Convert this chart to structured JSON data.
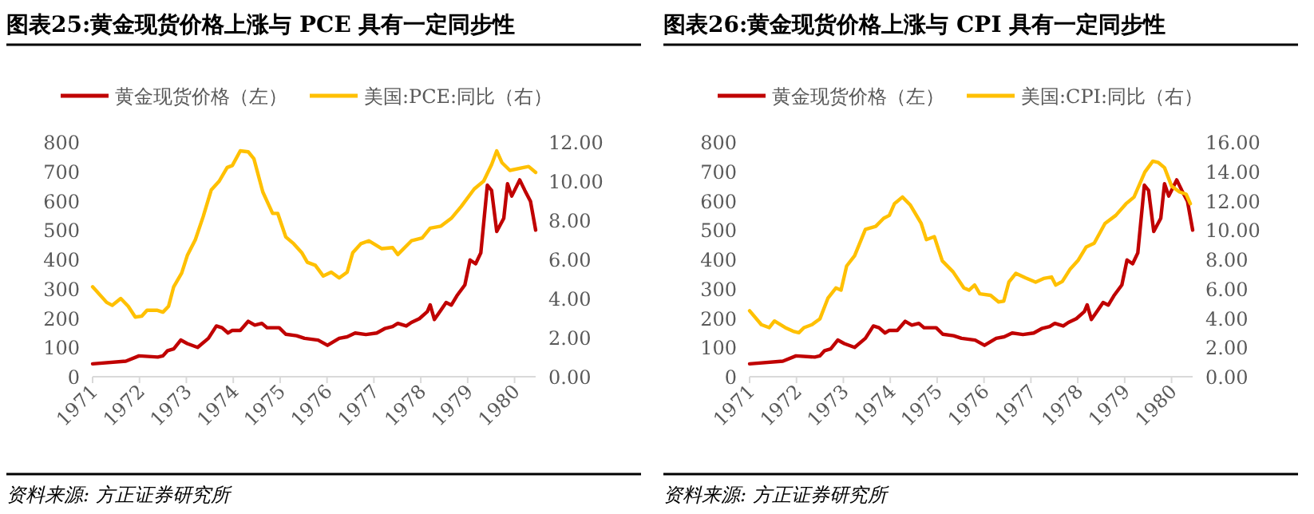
{
  "chart_data": [
    {
      "type": "line",
      "title": "图表25:黄金现货价格上涨与 PCE 具有一定同步性",
      "annotations": [
        "资料来源: 方正证券研究所"
      ],
      "legend": "top",
      "marker": "none",
      "line_style": "solid",
      "grid": false,
      "xlim": [
        1971,
        1980.45
      ],
      "xticks": [
        1971,
        1972,
        1973,
        1974,
        1975,
        1976,
        1977,
        1978,
        1979,
        1980
      ],
      "ylim": [
        0,
        800
      ],
      "yticks": [
        0,
        100,
        200,
        300,
        400,
        500,
        600,
        700,
        800
      ],
      "y2lim": [
        0,
        12
      ],
      "y2ticks": [
        {
          "value": 0,
          "label": "0.00"
        },
        {
          "value": 2,
          "label": "2.00"
        },
        {
          "value": 4,
          "label": "4.00"
        },
        {
          "value": 6,
          "label": "6.00"
        },
        {
          "value": 8,
          "label": "8.00"
        },
        {
          "value": 10,
          "label": "10.00"
        },
        {
          "value": 12,
          "label": "12.00"
        }
      ],
      "series": [
        {
          "name": "黄金现货价格（左）",
          "color": "#c00000",
          "x": [
            1971.0,
            1971.71,
            1971.99,
            1972.39,
            1972.5,
            1972.6,
            1972.73,
            1972.88,
            1973.02,
            1973.24,
            1973.47,
            1973.64,
            1973.76,
            1973.89,
            1973.98,
            1974.15,
            1974.32,
            1974.46,
            1974.61,
            1974.72,
            1974.98,
            1975.12,
            1975.35,
            1975.52,
            1975.81,
            1976.01,
            1976.26,
            1976.43,
            1976.6,
            1976.83,
            1977.06,
            1977.23,
            1977.4,
            1977.51,
            1977.69,
            1977.8,
            1977.97,
            1978.14,
            1978.2,
            1978.29,
            1978.43,
            1978.54,
            1978.65,
            1978.77,
            1978.94,
            1979.05,
            1979.17,
            1979.28,
            1979.42,
            1979.51,
            1979.62,
            1979.77,
            1979.85,
            1979.94,
            1980.11,
            1980.22,
            1980.34,
            1980.45
          ],
          "values": [
            44,
            53,
            71,
            67,
            71,
            89,
            95,
            125,
            113,
            100,
            131,
            173,
            167,
            149,
            158,
            158,
            189,
            176,
            182,
            167,
            167,
            145,
            140,
            131,
            125,
            107,
            131,
            136,
            149,
            144,
            149,
            164,
            171,
            182,
            173,
            185,
            198,
            222,
            245,
            195,
            227,
            253,
            244,
            276,
            313,
            398,
            385,
            422,
            653,
            635,
            495,
            540,
            658,
            616,
            671,
            635,
            598,
            500
          ]
        },
        {
          "name": "美国:PCE:同比（右）",
          "color": "#ffc000",
          "axis": "y2",
          "x": [
            1971.0,
            1971.3,
            1971.42,
            1971.6,
            1971.76,
            1971.91,
            1972.05,
            1972.16,
            1972.37,
            1972.5,
            1972.62,
            1972.73,
            1972.9,
            1973.02,
            1973.19,
            1973.36,
            1973.53,
            1973.7,
            1973.87,
            1973.98,
            1974.15,
            1974.32,
            1974.44,
            1974.63,
            1974.84,
            1974.95,
            1975.12,
            1975.29,
            1975.46,
            1975.58,
            1975.75,
            1975.92,
            1976.09,
            1976.26,
            1976.43,
            1976.55,
            1976.72,
            1976.89,
            1977.17,
            1977.4,
            1977.51,
            1977.8,
            1978.03,
            1978.2,
            1978.43,
            1978.65,
            1978.86,
            1979.14,
            1979.34,
            1979.51,
            1979.62,
            1979.73,
            1979.9,
            1980.19,
            1980.3,
            1980.45
          ],
          "values": [
            4.6,
            3.8,
            3.65,
            4.0,
            3.6,
            3.05,
            3.1,
            3.4,
            3.4,
            3.3,
            3.6,
            4.6,
            5.3,
            6.2,
            7.0,
            8.2,
            9.55,
            10.0,
            10.7,
            10.8,
            11.55,
            11.5,
            11.15,
            9.45,
            8.35,
            8.35,
            7.15,
            6.8,
            6.35,
            5.85,
            5.7,
            5.15,
            5.35,
            5.05,
            5.35,
            6.35,
            6.8,
            6.95,
            6.55,
            6.6,
            6.25,
            6.95,
            7.1,
            7.6,
            7.7,
            8.1,
            8.7,
            9.6,
            10.0,
            10.85,
            11.55,
            10.95,
            10.55,
            10.7,
            10.75,
            10.45
          ]
        }
      ]
    },
    {
      "type": "line",
      "title": "图表26:黄金现货价格上涨与 CPI 具有一定同步性",
      "annotations": [
        "资料来源: 方正证券研究所"
      ],
      "legend": "top",
      "marker": "none",
      "line_style": "solid",
      "grid": false,
      "xlim": [
        1971,
        1980.45
      ],
      "xticks": [
        1971,
        1972,
        1973,
        1974,
        1975,
        1976,
        1977,
        1978,
        1979,
        1980
      ],
      "ylim": [
        0,
        800
      ],
      "yticks": [
        0,
        100,
        200,
        300,
        400,
        500,
        600,
        700,
        800
      ],
      "y2lim": [
        0,
        16
      ],
      "y2ticks": [
        {
          "value": 0,
          "label": "0.00"
        },
        {
          "value": 2,
          "label": "2.00"
        },
        {
          "value": 4,
          "label": "4.00"
        },
        {
          "value": 6,
          "label": "6.00"
        },
        {
          "value": 8,
          "label": "8.00"
        },
        {
          "value": 10,
          "label": "10.00"
        },
        {
          "value": 12,
          "label": "12.00"
        },
        {
          "value": 14,
          "label": "14.00"
        },
        {
          "value": 16,
          "label": "16.00"
        }
      ],
      "series": [
        {
          "name": "黄金现货价格（左）",
          "color": "#c00000",
          "x": [
            1971.0,
            1971.71,
            1971.99,
            1972.39,
            1972.5,
            1972.6,
            1972.73,
            1972.88,
            1973.02,
            1973.24,
            1973.47,
            1973.64,
            1973.76,
            1973.89,
            1973.98,
            1974.15,
            1974.32,
            1974.46,
            1974.61,
            1974.72,
            1974.98,
            1975.12,
            1975.35,
            1975.52,
            1975.81,
            1976.01,
            1976.26,
            1976.43,
            1976.6,
            1976.83,
            1977.06,
            1977.23,
            1977.4,
            1977.51,
            1977.69,
            1977.8,
            1977.97,
            1978.14,
            1978.2,
            1978.29,
            1978.43,
            1978.54,
            1978.65,
            1978.77,
            1978.94,
            1979.05,
            1979.17,
            1979.28,
            1979.42,
            1979.51,
            1979.62,
            1979.77,
            1979.85,
            1979.94,
            1980.11,
            1980.22,
            1980.34,
            1980.45
          ],
          "values": [
            44,
            53,
            71,
            67,
            71,
            89,
            95,
            125,
            113,
            100,
            131,
            173,
            167,
            149,
            158,
            158,
            189,
            176,
            182,
            167,
            167,
            145,
            140,
            131,
            125,
            107,
            131,
            136,
            149,
            144,
            149,
            164,
            171,
            182,
            173,
            185,
            198,
            222,
            245,
            195,
            227,
            253,
            244,
            276,
            313,
            398,
            385,
            422,
            653,
            635,
            495,
            540,
            658,
            616,
            671,
            635,
            598,
            500
          ]
        },
        {
          "name": "美国:CPI:同比（右）",
          "color": "#ffc000",
          "axis": "y2",
          "x": [
            1971.0,
            1971.25,
            1971.42,
            1971.53,
            1971.76,
            1971.93,
            1972.05,
            1972.16,
            1972.33,
            1972.5,
            1972.67,
            1972.84,
            1972.95,
            1973.07,
            1973.24,
            1973.47,
            1973.69,
            1973.86,
            1973.98,
            1974.09,
            1974.26,
            1974.43,
            1974.66,
            1974.77,
            1974.94,
            1975.11,
            1975.34,
            1975.57,
            1975.68,
            1975.8,
            1975.91,
            1976.14,
            1976.31,
            1976.42,
            1976.53,
            1976.68,
            1976.88,
            1977.1,
            1977.27,
            1977.44,
            1977.53,
            1977.67,
            1977.84,
            1978.01,
            1978.18,
            1978.35,
            1978.58,
            1978.81,
            1979.03,
            1979.2,
            1979.43,
            1979.6,
            1979.72,
            1979.85,
            1980.0,
            1980.17,
            1980.31,
            1980.4
          ],
          "values": [
            4.5,
            3.55,
            3.35,
            3.8,
            3.35,
            3.1,
            3.0,
            3.35,
            3.55,
            3.95,
            5.35,
            6.05,
            5.9,
            7.55,
            8.25,
            10.05,
            10.25,
            10.8,
            11.0,
            11.8,
            12.25,
            11.7,
            10.45,
            9.35,
            9.55,
            7.9,
            7.15,
            6.05,
            5.9,
            6.25,
            5.65,
            5.55,
            5.1,
            5.15,
            6.45,
            7.05,
            6.75,
            6.45,
            6.7,
            6.8,
            6.25,
            6.5,
            7.35,
            7.95,
            8.85,
            9.1,
            10.45,
            11.0,
            11.8,
            12.25,
            13.95,
            14.7,
            14.6,
            14.25,
            13.0,
            12.6,
            12.45,
            11.8
          ]
        }
      ]
    }
  ]
}
